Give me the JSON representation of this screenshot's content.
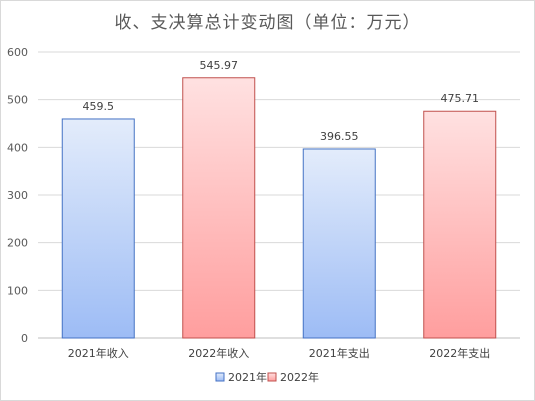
{
  "chart_data": {
    "type": "bar",
    "title": "收、支决算总计变动图（单位：万元）",
    "categories": [
      "2021年收入",
      "2022年收入",
      "2021年支出",
      "2022年支出"
    ],
    "values": [
      459.5,
      545.97,
      396.55,
      475.71
    ],
    "value_labels": [
      "459.5",
      "545.97",
      "396.55",
      "475.71"
    ],
    "bar_series": [
      "2021年",
      "2022年",
      "2021年",
      "2022年"
    ],
    "series": [
      {
        "name": "2021年",
        "color_top": "#e3ecfb",
        "color_bottom": "#9dbcf5",
        "border": "#4472c4"
      },
      {
        "name": "2022年",
        "color_top": "#ffe1e1",
        "color_bottom": "#ff9e9e",
        "border": "#c0504d"
      }
    ],
    "yticks": [
      "0",
      "100",
      "200",
      "300",
      "400",
      "500",
      "600"
    ],
    "ylim": [
      0,
      600
    ],
    "grid": true,
    "legend": "bottom"
  }
}
